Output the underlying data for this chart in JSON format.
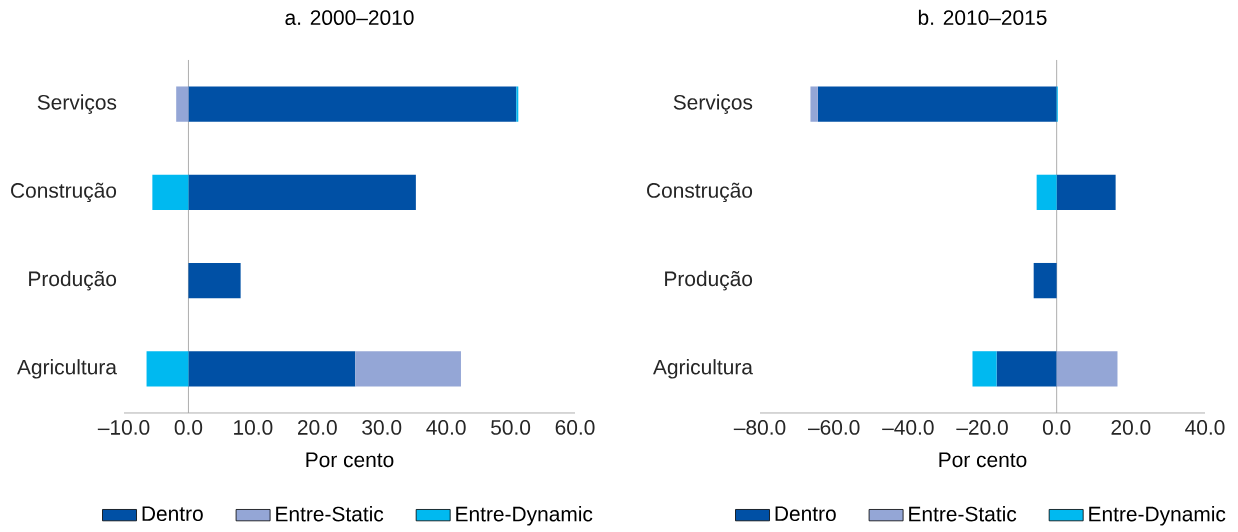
{
  "chart_data": [
    {
      "type": "bar",
      "orientation": "horizontal",
      "stacked": true,
      "title": "a. 2000–2010",
      "xlabel": "Por cento",
      "legend": "bottom",
      "categories": [
        "Serviços",
        "Construção",
        "Produção",
        "Agricultura"
      ],
      "xlim": [
        -10,
        60
      ],
      "xticks": [
        {
          "value": -10,
          "label": "–10.0"
        },
        {
          "value": 0,
          "label": "0.0"
        },
        {
          "value": 10,
          "label": "10.0"
        },
        {
          "value": 20,
          "label": "20.0"
        },
        {
          "value": 30,
          "label": "30.0"
        },
        {
          "value": 40,
          "label": "40.0"
        },
        {
          "value": 50,
          "label": "50.0"
        },
        {
          "value": 60,
          "label": "60.0"
        }
      ],
      "series": [
        {
          "name": "Dentro",
          "color": "#0050a5",
          "values": [
            50.9,
            35.3,
            8.1,
            25.9
          ]
        },
        {
          "name": "Entre-Static",
          "color": "#94a6d6",
          "values": [
            -1.9,
            null,
            null,
            16.4
          ]
        },
        {
          "name": "Entre-Dynamic",
          "color": "#00b9f0",
          "values": [
            0.3,
            -5.6,
            null,
            -6.5
          ]
        }
      ]
    },
    {
      "type": "bar",
      "orientation": "horizontal",
      "stacked": true,
      "title": "b. 2010–2015",
      "xlabel": "Por cento",
      "legend": "bottom",
      "categories": [
        "Serviços",
        "Construção",
        "Produção",
        "Agricultura"
      ],
      "xlim": [
        -80,
        40
      ],
      "xticks": [
        {
          "value": -80,
          "label": "–80.0"
        },
        {
          "value": -60,
          "label": "–60.0"
        },
        {
          "value": -40,
          "label": "–40.0"
        },
        {
          "value": -20,
          "label": "–20.0"
        },
        {
          "value": 0,
          "label": "0.0"
        },
        {
          "value": 20,
          "label": "20.0"
        },
        {
          "value": 40,
          "label": "40.0"
        }
      ],
      "series": [
        {
          "name": "Dentro",
          "color": "#0050a5",
          "values": [
            -64.4,
            15.9,
            -6.2,
            -16.2
          ]
        },
        {
          "name": "Entre-Static",
          "color": "#94a6d6",
          "values": [
            -2.0,
            null,
            null,
            16.4
          ]
        },
        {
          "name": "Entre-Dynamic",
          "color": "#00b9f0",
          "values": [
            0.3,
            -5.4,
            null,
            -6.5
          ]
        }
      ]
    }
  ]
}
